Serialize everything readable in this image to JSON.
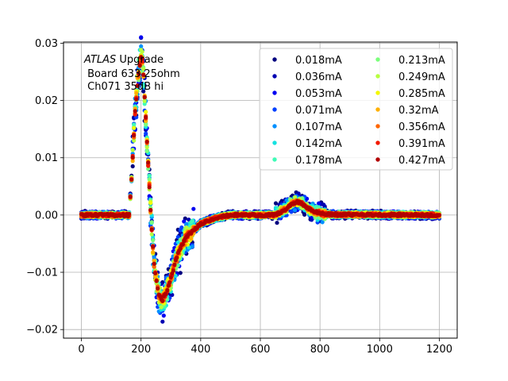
{
  "chart_data": {
    "type": "scatter",
    "title": "",
    "xlabel": "",
    "ylabel": "",
    "xlim": [
      -60,
      1260
    ],
    "ylim": [
      -0.0215,
      0.0302
    ],
    "grid": true,
    "x_ticks": [
      0,
      200,
      400,
      600,
      800,
      1000,
      1200
    ],
    "x_tick_labels": [
      "0",
      "200",
      "400",
      "600",
      "800",
      "1000",
      "1200"
    ],
    "y_ticks": [
      -0.02,
      -0.01,
      0.0,
      0.01,
      0.02,
      0.03
    ],
    "y_tick_labels": [
      "−0.02",
      "−0.01",
      "0.00",
      "0.01",
      "0.02",
      "0.03"
    ],
    "annotation": {
      "italic": "ATLAS",
      "line1_rest": " Upgrade",
      "line2": " Board 633 25ohm",
      "line3": " Ch071 35dB hi"
    },
    "legend": {
      "placement": "top-right",
      "columns": 2
    },
    "series": [
      {
        "name": "0.018mA",
        "color": "#00007f",
        "current_mA": 0.018
      },
      {
        "name": "0.036mA",
        "color": "#0000b2",
        "current_mA": 0.036
      },
      {
        "name": "0.053mA",
        "color": "#0000f1",
        "current_mA": 0.053
      },
      {
        "name": "0.071mA",
        "color": "#0040ff",
        "current_mA": 0.071
      },
      {
        "name": "0.107mA",
        "color": "#0090ff",
        "current_mA": 0.107
      },
      {
        "name": "0.142mA",
        "color": "#15e2e1",
        "current_mA": 0.142
      },
      {
        "name": "0.178mA",
        "color": "#3ffbb7",
        "current_mA": 0.178
      },
      {
        "name": "0.213mA",
        "color": "#7bff7b",
        "current_mA": 0.213
      },
      {
        "name": "0.249mA",
        "color": "#b7ff3f",
        "current_mA": 0.249
      },
      {
        "name": "0.285mA",
        "color": "#f4f802",
        "current_mA": 0.285
      },
      {
        "name": "0.32mA",
        "color": "#ffb000",
        "current_mA": 0.32
      },
      {
        "name": "0.356mA",
        "color": "#ff6600",
        "current_mA": 0.356
      },
      {
        "name": "0.391mA",
        "color": "#f21900",
        "current_mA": 0.391
      },
      {
        "name": "0.427mA",
        "color": "#b20000",
        "current_mA": 0.427
      }
    ],
    "pulse_shape_points": [
      {
        "x": 0,
        "y": 0.0
      },
      {
        "x": 160,
        "y": 0.0
      },
      {
        "x": 170,
        "y": 0.008
      },
      {
        "x": 180,
        "y": 0.018
      },
      {
        "x": 190,
        "y": 0.024
      },
      {
        "x": 200,
        "y": 0.0275
      },
      {
        "x": 205,
        "y": 0.027
      },
      {
        "x": 215,
        "y": 0.018
      },
      {
        "x": 225,
        "y": 0.008
      },
      {
        "x": 235,
        "y": -0.002
      },
      {
        "x": 245,
        "y": -0.009
      },
      {
        "x": 260,
        "y": -0.014
      },
      {
        "x": 270,
        "y": -0.015
      },
      {
        "x": 285,
        "y": -0.0135
      },
      {
        "x": 300,
        "y": -0.011
      },
      {
        "x": 325,
        "y": -0.0065
      },
      {
        "x": 350,
        "y": -0.004
      },
      {
        "x": 400,
        "y": -0.0015
      },
      {
        "x": 450,
        "y": -0.0005
      },
      {
        "x": 500,
        "y": 0.0
      },
      {
        "x": 650,
        "y": 0.0
      },
      {
        "x": 680,
        "y": 0.0008
      },
      {
        "x": 700,
        "y": 0.0018
      },
      {
        "x": 720,
        "y": 0.0023
      },
      {
        "x": 740,
        "y": 0.002
      },
      {
        "x": 760,
        "y": 0.0012
      },
      {
        "x": 780,
        "y": 0.0006
      },
      {
        "x": 820,
        "y": 0.0001
      },
      {
        "x": 1200,
        "y": 0.0
      }
    ],
    "noise_amplitude": 0.0006
  }
}
